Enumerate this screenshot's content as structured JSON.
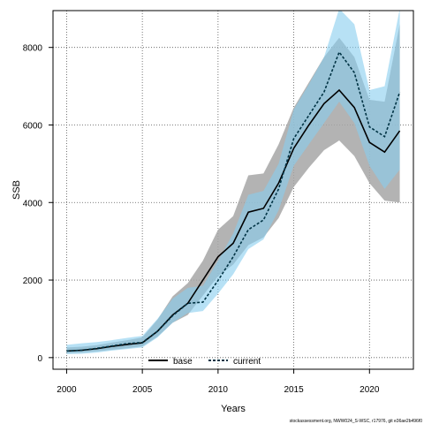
{
  "chart_data": {
    "type": "line",
    "xlabel": "Years",
    "ylabel": "SSB",
    "xlim": [
      1999.1,
      2022.9
    ],
    "ylim": [
      -300,
      8950
    ],
    "x_ticks": [
      2000,
      2005,
      2010,
      2015,
      2020
    ],
    "y_ticks": [
      0,
      2000,
      4000,
      6000,
      8000
    ],
    "grid": true,
    "legend_position": "bottom-center",
    "footnote": "stockassessment.org, NWW024_S-WSC, r17976, git e36ae2b496f0",
    "colors": {
      "base_line": "#000000",
      "base_band": "#a6a6a6",
      "current_line": "#003344",
      "current_band": "#87cdee",
      "grid": "#555555"
    },
    "x": [
      2000,
      2001,
      2002,
      2003,
      2004,
      2005,
      2006,
      2007,
      2008,
      2009,
      2010,
      2011,
      2012,
      2013,
      2014,
      2015,
      2016,
      2017,
      2018,
      2019,
      2020,
      2021,
      2022
    ],
    "series": [
      {
        "name": "base",
        "style": "solid",
        "values": [
          170,
          190,
          230,
          290,
          340,
          380,
          680,
          1100,
          1400,
          2000,
          2600,
          2950,
          3750,
          3850,
          4500,
          5400,
          6000,
          6550,
          6900,
          6450,
          5550,
          5300,
          5850
        ],
        "lower": [
          110,
          130,
          160,
          200,
          240,
          290,
          540,
          900,
          1100,
          1600,
          2100,
          2400,
          2900,
          3100,
          3600,
          4400,
          4900,
          5350,
          5600,
          5200,
          4500,
          4050,
          4000
        ],
        "upper": [
          260,
          280,
          320,
          390,
          450,
          520,
          980,
          1580,
          1920,
          2500,
          3300,
          3650,
          4700,
          4750,
          5500,
          6450,
          7100,
          7750,
          8250,
          7750,
          6650,
          6600,
          8600
        ]
      },
      {
        "name": "current",
        "style": "dashed",
        "values": [
          170,
          190,
          240,
          300,
          360,
          390,
          680,
          1080,
          1400,
          1430,
          1990,
          2600,
          3300,
          3550,
          4350,
          5650,
          6250,
          6850,
          7880,
          7350,
          5950,
          5700,
          6850
        ],
        "lower": [
          90,
          100,
          130,
          180,
          220,
          260,
          520,
          900,
          1150,
          1200,
          1650,
          2150,
          2800,
          3050,
          3800,
          4950,
          5500,
          6050,
          6600,
          6050,
          4950,
          4350,
          4850
        ],
        "upper": [
          330,
          370,
          400,
          450,
          510,
          560,
          1000,
          1520,
          1800,
          1850,
          2500,
          3200,
          4200,
          4300,
          5000,
          6400,
          7050,
          7750,
          9000,
          8600,
          6900,
          7000,
          9000
        ]
      }
    ]
  }
}
